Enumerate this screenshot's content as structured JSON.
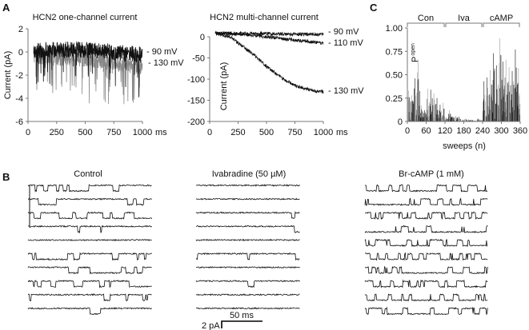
{
  "panel_labels": {
    "a": "A",
    "b": "B",
    "c": "C"
  },
  "chart_data": [
    {
      "type": "line",
      "title": "HCN2 one-channel current",
      "ylabel": "Current (pA)",
      "xlabel_unit": "ms",
      "xlim": [
        0,
        1000
      ],
      "ylim": [
        -6,
        2
      ],
      "xticks": [
        "0",
        "250",
        "500",
        "750",
        "1000"
      ],
      "yticks": [
        "2",
        "0",
        "-2",
        "-4",
        "-6"
      ],
      "series": [
        {
          "name": "- 90 mV",
          "x": [
            50,
            250,
            500,
            750,
            1000
          ],
          "y": [
            0.1,
            0.2,
            0.2,
            0.0,
            -0.3
          ]
        },
        {
          "name": "- 130 mV",
          "x": [
            50,
            250,
            500,
            750,
            1000
          ],
          "y": [
            -0.3,
            -0.5,
            -0.6,
            -0.9,
            -1.3
          ]
        }
      ]
    },
    {
      "type": "line",
      "title": "HCN2 multi-channel current",
      "ylabel": "Current (pA)",
      "xlabel_unit": "ms",
      "xlim": [
        0,
        1000
      ],
      "ylim": [
        -200,
        20
      ],
      "xticks": [
        "0",
        "250",
        "500",
        "750",
        "1000"
      ],
      "yticks": [
        "0",
        "-50",
        "-100",
        "-150",
        "-200"
      ],
      "series": [
        {
          "name": "- 90 mV",
          "x": [
            50,
            250,
            500,
            750,
            1000
          ],
          "y": [
            8,
            8,
            7,
            6,
            6
          ]
        },
        {
          "name": "- 110 mV",
          "x": [
            50,
            250,
            500,
            750,
            1000
          ],
          "y": [
            8,
            6,
            0,
            -8,
            -15
          ]
        },
        {
          "name": "- 130 mV",
          "x": [
            50,
            180,
            250,
            400,
            500,
            650,
            750,
            900,
            1000
          ],
          "y": [
            8,
            0,
            -15,
            -45,
            -70,
            -100,
            -115,
            -127,
            -130
          ]
        }
      ]
    },
    {
      "type": "bar",
      "ylabel": "P open",
      "ylabel_main": "P",
      "ylabel_sub": "open",
      "xlabel": "sweeps (n)",
      "xlim": [
        0,
        360
      ],
      "ylim": [
        0,
        1
      ],
      "xticks": [
        "0",
        "60",
        "120",
        "180",
        "240",
        "300",
        "360"
      ],
      "yticks": [
        "1.00",
        "0.75",
        "0.50",
        "0.25",
        "0"
      ],
      "groups": [
        {
          "label": "Con",
          "range": [
            0,
            120
          ]
        },
        {
          "label": "Iva",
          "range": [
            120,
            240
          ]
        },
        {
          "label": "cAMP",
          "range": [
            240,
            360
          ]
        }
      ],
      "bin_size_sweeps": 10,
      "bin_max_values": [
        0.33,
        0.28,
        0.46,
        0.66,
        0.17,
        0.12,
        0.35,
        0.34,
        0.3,
        0.25,
        0.18,
        0.2,
        0.04,
        0.12,
        0.06,
        0.06,
        0.05,
        0.02,
        0.03,
        0.02,
        0.02,
        0.01,
        0.03,
        0.02,
        0.43,
        0.47,
        0.55,
        0.73,
        0.6,
        0.89,
        0.64,
        0.66,
        0.58,
        0.54,
        0.77,
        0.57
      ]
    }
  ],
  "panel_b": {
    "conditions": [
      {
        "label": "Control",
        "sweeps": 10
      },
      {
        "label": "Ivabradine (50 µM)",
        "sweeps": 10
      },
      {
        "label": "Br-cAMP (1 mM)",
        "sweeps": 10
      }
    ],
    "scale_time": "50 ms",
    "scale_current": "2 pA"
  }
}
